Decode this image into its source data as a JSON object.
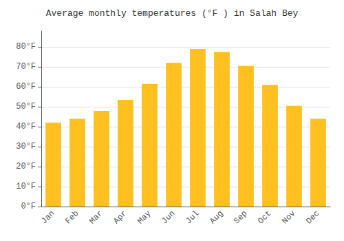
{
  "chart_data": {
    "type": "bar",
    "title": "Average monthly temperatures (°F ) in Salah Bey",
    "categories": [
      "Jan",
      "Feb",
      "Mar",
      "Apr",
      "May",
      "Jun",
      "Jul",
      "Aug",
      "Sep",
      "Oct",
      "Nov",
      "Dec"
    ],
    "values": [
      42,
      44,
      48,
      53.5,
      61.5,
      72,
      79,
      77.5,
      70.5,
      61,
      50.5,
      44
    ],
    "color": "#FFC020",
    "ylim": [
      0,
      88
    ],
    "yticks": [
      {
        "value": 0,
        "label": "0°F"
      },
      {
        "value": 10,
        "label": "10°F"
      },
      {
        "value": 20,
        "label": "20°F"
      },
      {
        "value": 30,
        "label": "30°F"
      },
      {
        "value": 40,
        "label": "40°F"
      },
      {
        "value": 50,
        "label": "50°F"
      },
      {
        "value": 60,
        "label": "60°F"
      },
      {
        "value": 70,
        "label": "70°F"
      },
      {
        "value": 80,
        "label": "80°F"
      }
    ],
    "grid": true
  }
}
